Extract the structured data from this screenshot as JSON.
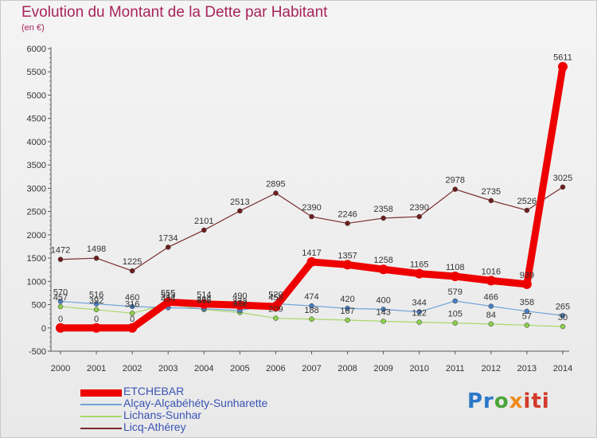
{
  "title": "Evolution du Montant de la Dette par Habitant",
  "unit": "(en €)",
  "logo": {
    "parts": [
      "Pr",
      "o",
      "x",
      "iti"
    ]
  },
  "chart_data": {
    "type": "line",
    "title": "Evolution du Montant de la Dette par Habitant",
    "subtitle": "(en €)",
    "xlabel": "",
    "ylabel": "",
    "ylim": [
      -500,
      6000
    ],
    "yticks": [
      -500,
      0,
      500,
      1000,
      1500,
      2000,
      2500,
      3000,
      3500,
      4000,
      4500,
      5000,
      5500,
      6000
    ],
    "x": [
      "2000",
      "2001",
      "2002",
      "2003",
      "2004",
      "2005",
      "2006",
      "2007",
      "2008",
      "2009",
      "2010",
      "2011",
      "2012",
      "2013",
      "2014"
    ],
    "grid": false,
    "legend_position": "bottom-left",
    "series": [
      {
        "name": "ETCHEBAR",
        "color": "#ee0000",
        "marker": "#ee0000",
        "values": [
          0,
          0,
          0,
          555,
          514,
          490,
          458,
          1417,
          1357,
          1258,
          1165,
          1108,
          1016,
          939,
          5611
        ]
      },
      {
        "name": "Alçay-Alçabéhéty-Sunharette",
        "color": "#6fa3d8",
        "marker": "#4a7fc4",
        "values": [
          570,
          516,
          460,
          434,
          412,
          372,
          520,
          474,
          420,
          400,
          344,
          579,
          466,
          358,
          265
        ]
      },
      {
        "name": "Lichans-Sunhar",
        "color": "#a8d86a",
        "marker": "#8cd04a",
        "values": [
          457,
          392,
          316,
          513,
          395,
          332,
          209,
          188,
          167,
          143,
          122,
          105,
          84,
          57,
          30
        ]
      },
      {
        "name": "Licq-Athérey",
        "color": "#7a2c2c",
        "marker": "#6e1e1e",
        "values": [
          1472,
          1498,
          1225,
          1734,
          2101,
          2513,
          2895,
          2390,
          2246,
          2358,
          2390,
          2978,
          2735,
          2526,
          3025
        ]
      }
    ]
  }
}
